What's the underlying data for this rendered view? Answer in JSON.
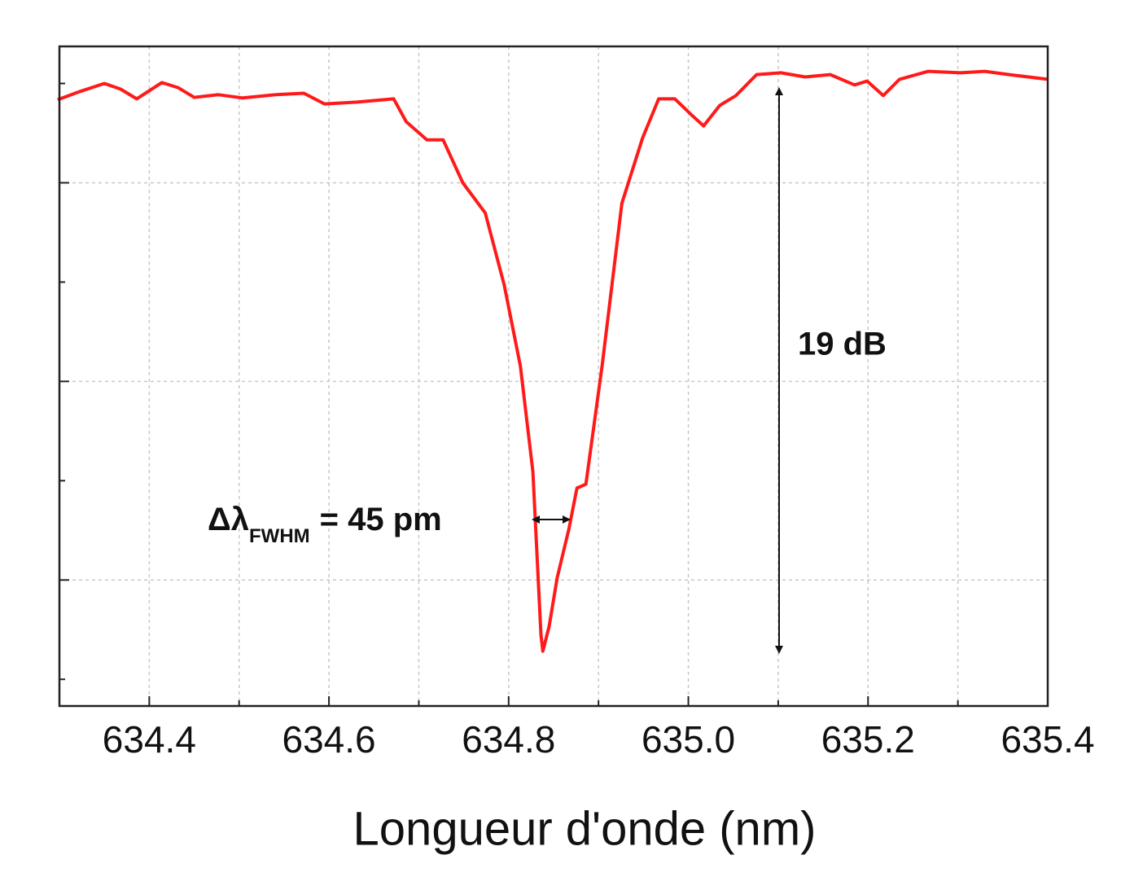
{
  "chart_data": {
    "type": "line",
    "xlabel": "Longueur d'onde (nm)",
    "annotations": {
      "depth": "19 dB",
      "width_symbol": "Δλ",
      "width_sub": "FWHM",
      "width_value": "= 45 pm"
    },
    "x": [
      634.298,
      634.323,
      634.35,
      634.368,
      634.386,
      634.414,
      634.432,
      634.45,
      634.477,
      634.504,
      634.541,
      634.572,
      634.595,
      634.631,
      634.672,
      634.686,
      634.709,
      634.727,
      634.749,
      634.774,
      634.795,
      634.813,
      634.827,
      634.836,
      634.838,
      634.845,
      634.854,
      634.867,
      634.876,
      634.886,
      634.904,
      634.926,
      634.949,
      634.967,
      634.985,
      635.002,
      635.017,
      635.035,
      635.053,
      635.076,
      635.103,
      635.13,
      635.158,
      635.185,
      635.199,
      635.217,
      635.235,
      635.267,
      635.303,
      635.33,
      635.357,
      635.4
    ],
    "values": [
      -0.55,
      -0.27,
      0,
      -0.19,
      -0.52,
      0.03,
      -0.14,
      -0.47,
      -0.38,
      -0.49,
      -0.38,
      -0.33,
      -0.69,
      -0.63,
      -0.52,
      -1.29,
      -1.9,
      -1.9,
      -3.35,
      -4.37,
      -6.79,
      -9.53,
      -13.1,
      -18.6,
      -19.15,
      -18.32,
      -16.68,
      -15.03,
      -13.65,
      -13.52,
      -9.53,
      -4.04,
      -1.84,
      -0.52,
      -0.52,
      -1.02,
      -1.43,
      -0.74,
      -0.41,
      0.3,
      0.36,
      0.22,
      0.3,
      -0.05,
      0.08,
      -0.41,
      0.14,
      0.41,
      0.36,
      0.41,
      0.3,
      0.14
    ],
    "color": "#ff1a1a",
    "xlim": [
      634.3,
      635.4
    ],
    "xticks": [
      634.4,
      634.6,
      634.8,
      {
        "value": 635,
        "label": "635.0"
      },
      635.2,
      635.4
    ],
    "xminor": [
      634.5,
      634.7,
      634.9,
      635.1,
      635.3
    ],
    "ylim": [
      -21,
      1.25
    ],
    "yticks": [
      -3.35,
      -10.05,
      -16.75
    ],
    "yminor": [
      0,
      -6.7,
      -13.4,
      -20.1
    ],
    "grid": true
  }
}
